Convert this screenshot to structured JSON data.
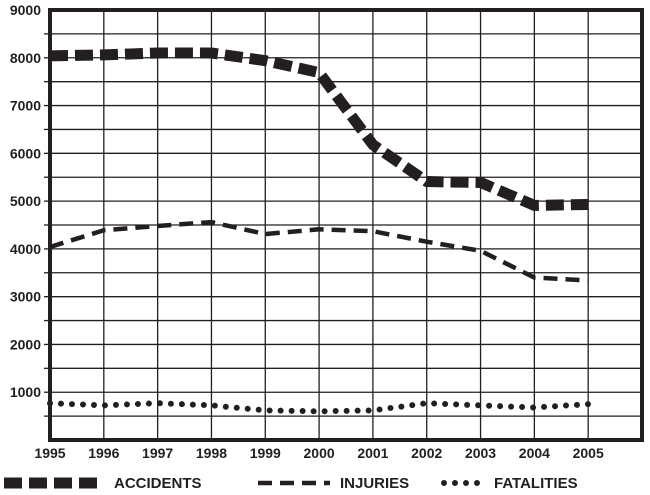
{
  "chart_data": {
    "type": "line",
    "title": "",
    "xlabel": "",
    "ylabel": "",
    "x": [
      1995,
      1996,
      1997,
      1998,
      1999,
      2000,
      2001,
      2002,
      2003,
      2004,
      2005
    ],
    "x_tick_labels": [
      "1995",
      "1996",
      "1997",
      "1998",
      "1999",
      "2000",
      "2001",
      "2002",
      "2003",
      "2004",
      "2005"
    ],
    "y_tick_labels": [
      "1000",
      "2000",
      "3000",
      "4000",
      "5000",
      "6000",
      "7000",
      "8000",
      "9000"
    ],
    "xlim": [
      1995,
      2006
    ],
    "ylim": [
      0,
      9000
    ],
    "grid": true,
    "grid_step": 500,
    "legend_placement": "bottom",
    "series": [
      {
        "name": "ACCIDENTS",
        "style": "thick-dashed",
        "values": [
          8040,
          8060,
          8100,
          8100,
          7940,
          7690,
          6180,
          5410,
          5390,
          4910,
          4930
        ]
      },
      {
        "name": "INJURIES",
        "style": "dashed",
        "values": [
          4040,
          4390,
          4480,
          4560,
          4310,
          4410,
          4370,
          4150,
          3960,
          3400,
          3340
        ]
      },
      {
        "name": "FATALITIES",
        "style": "dotted",
        "values": [
          770,
          725,
          770,
          725,
          620,
          600,
          620,
          770,
          725,
          680,
          750
        ]
      }
    ],
    "colors": {
      "ink": "#231f20",
      "background": "#ffffff"
    }
  }
}
